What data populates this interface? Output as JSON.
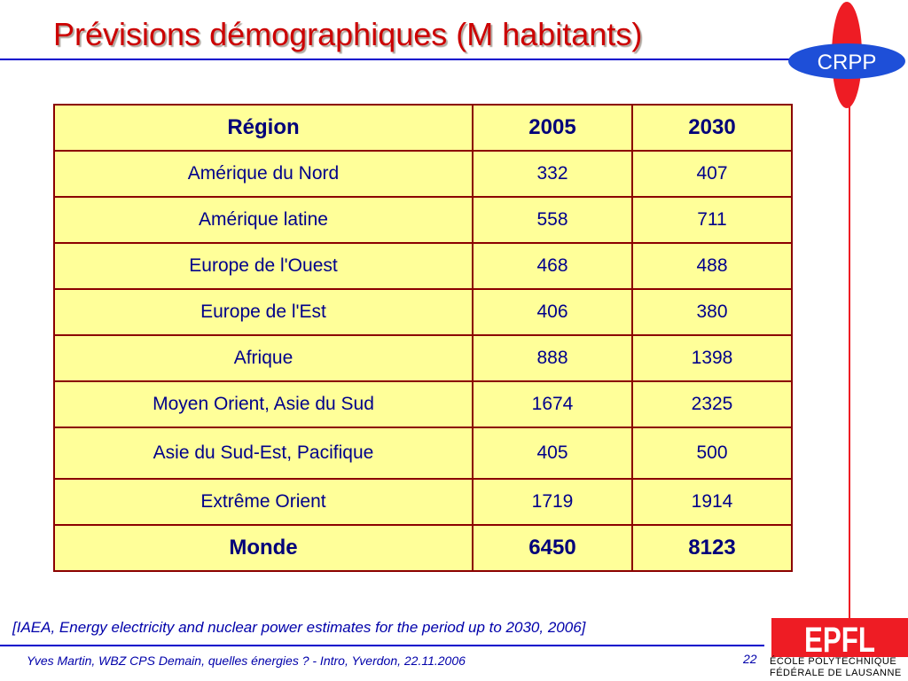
{
  "slide": {
    "title": "Prévisions démographiques (M habitants)",
    "source": "[IAEA, Energy electricity and nuclear power estimates for the period up to 2030, 2006]",
    "footer": "Yves Martin, WBZ CPS Demain, quelles énergies ? - Intro, Yverdon, 22.11.2006",
    "page_number": "22"
  },
  "logos": {
    "crpp_text": "CRPP",
    "epfl_mark": "EPFL",
    "epfl_line1": "ÉCOLE POLYTECHNIQUE",
    "epfl_line2": "FÉDÉRALE DE LAUSANNE"
  },
  "colors": {
    "title": "#cc0000",
    "rule": "#0000cc",
    "table_fill": "#ffff99",
    "table_border": "#8b0000",
    "text_blue": "#00008b",
    "logo_red": "#ee1c24",
    "logo_blue": "#1e4fd8"
  },
  "table": {
    "headers": [
      "Région",
      "2005",
      "2030"
    ],
    "rows": [
      [
        "Amérique du Nord",
        "332",
        "407"
      ],
      [
        "Amérique latine",
        "558",
        "711"
      ],
      [
        "Europe de l'Ouest",
        "468",
        "488"
      ],
      [
        "Europe de l'Est",
        "406",
        "380"
      ],
      [
        "Afrique",
        "888",
        "1398"
      ],
      [
        "Moyen Orient, Asie du Sud",
        "1674",
        "2325"
      ],
      [
        "Asie du Sud-Est, Pacifique",
        "405",
        "500"
      ],
      [
        "Extrême Orient",
        "1719",
        "1914"
      ]
    ],
    "total": [
      "Monde",
      "6450",
      "8123"
    ]
  }
}
